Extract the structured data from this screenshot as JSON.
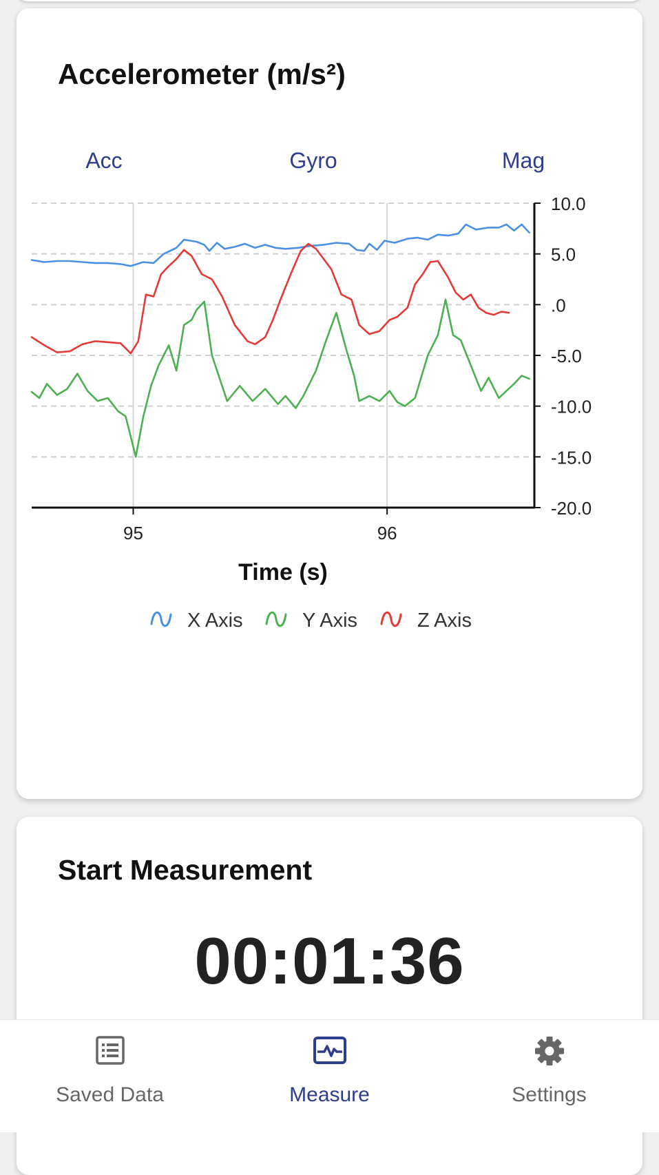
{
  "chart_card": {
    "title": "Accelerometer (m/s²)",
    "tabs": [
      "Acc",
      "Gyro",
      "Mag"
    ],
    "active_tab": "Acc"
  },
  "chart_data": {
    "type": "line",
    "xlabel": "Time (s)",
    "ylabel": "",
    "xlim": [
      94.6,
      96.58
    ],
    "ylim": [
      -20,
      10
    ],
    "x_ticks": [
      95,
      96
    ],
    "x_tick_labels": [
      "95",
      "96"
    ],
    "y_ticks": [
      10,
      5,
      0,
      -5,
      -10,
      -15,
      -20
    ],
    "y_tick_labels": [
      "10.0",
      "5.0",
      ".0",
      "-5.0",
      "-10.0",
      "-15.0",
      "-20.0"
    ],
    "grid": true,
    "legend_position": "bottom",
    "colors": {
      "x": "#4a90e2",
      "y": "#4caf50",
      "z": "#e53935"
    },
    "series": [
      {
        "name": "X Axis",
        "color": "#4a90e2",
        "points": [
          [
            94.6,
            4.4
          ],
          [
            94.65,
            4.2
          ],
          [
            94.7,
            4.3
          ],
          [
            94.75,
            4.3
          ],
          [
            94.8,
            4.2
          ],
          [
            94.85,
            4.1
          ],
          [
            94.9,
            4.1
          ],
          [
            94.95,
            4.0
          ],
          [
            94.99,
            3.8
          ],
          [
            95.04,
            4.2
          ],
          [
            95.08,
            4.1
          ],
          [
            95.12,
            5.0
          ],
          [
            95.17,
            5.6
          ],
          [
            95.2,
            6.4
          ],
          [
            95.25,
            6.2
          ],
          [
            95.28,
            5.9
          ],
          [
            95.3,
            5.3
          ],
          [
            95.33,
            6.1
          ],
          [
            95.36,
            5.5
          ],
          [
            95.4,
            5.7
          ],
          [
            95.44,
            6.0
          ],
          [
            95.48,
            5.6
          ],
          [
            95.52,
            5.9
          ],
          [
            95.56,
            5.6
          ],
          [
            95.6,
            5.5
          ],
          [
            95.65,
            5.6
          ],
          [
            95.7,
            5.8
          ],
          [
            95.75,
            5.9
          ],
          [
            95.8,
            6.1
          ],
          [
            95.85,
            6.0
          ],
          [
            95.88,
            5.4
          ],
          [
            95.91,
            5.3
          ],
          [
            95.93,
            6.0
          ],
          [
            95.96,
            5.4
          ],
          [
            95.99,
            6.3
          ],
          [
            96.03,
            6.1
          ],
          [
            96.08,
            6.5
          ],
          [
            96.12,
            6.6
          ],
          [
            96.16,
            6.4
          ],
          [
            96.2,
            6.9
          ],
          [
            96.24,
            6.8
          ],
          [
            96.28,
            7.0
          ],
          [
            96.31,
            7.9
          ],
          [
            96.35,
            7.4
          ],
          [
            96.4,
            7.6
          ],
          [
            96.44,
            7.6
          ],
          [
            96.47,
            7.9
          ],
          [
            96.5,
            7.3
          ],
          [
            96.53,
            7.9
          ],
          [
            96.56,
            7.1
          ]
        ]
      },
      {
        "name": "Y Axis",
        "color": "#4caf50",
        "points": [
          [
            94.6,
            -8.6
          ],
          [
            94.63,
            -9.2
          ],
          [
            94.66,
            -7.8
          ],
          [
            94.7,
            -8.9
          ],
          [
            94.74,
            -8.3
          ],
          [
            94.78,
            -6.8
          ],
          [
            94.82,
            -8.5
          ],
          [
            94.86,
            -9.5
          ],
          [
            94.9,
            -9.2
          ],
          [
            94.94,
            -10.5
          ],
          [
            94.97,
            -11.0
          ],
          [
            95.01,
            -15.0
          ],
          [
            95.04,
            -11.0
          ],
          [
            95.07,
            -8.0
          ],
          [
            95.1,
            -6.0
          ],
          [
            95.14,
            -4.0
          ],
          [
            95.17,
            -6.5
          ],
          [
            95.2,
            -2.0
          ],
          [
            95.23,
            -1.5
          ],
          [
            95.25,
            -0.5
          ],
          [
            95.28,
            0.3
          ],
          [
            95.31,
            -5.0
          ],
          [
            95.35,
            -8.0
          ],
          [
            95.37,
            -9.5
          ],
          [
            95.42,
            -8.0
          ],
          [
            95.47,
            -9.5
          ],
          [
            95.52,
            -8.3
          ],
          [
            95.57,
            -9.8
          ],
          [
            95.6,
            -9.0
          ],
          [
            95.64,
            -10.2
          ],
          [
            95.67,
            -9.0
          ],
          [
            95.72,
            -6.5
          ],
          [
            95.76,
            -3.5
          ],
          [
            95.8,
            -0.8
          ],
          [
            95.84,
            -4.5
          ],
          [
            95.87,
            -7.0
          ],
          [
            95.89,
            -9.5
          ],
          [
            95.93,
            -9.0
          ],
          [
            95.97,
            -9.5
          ],
          [
            96.01,
            -8.5
          ],
          [
            96.04,
            -9.6
          ],
          [
            96.07,
            -10.0
          ],
          [
            96.11,
            -9.2
          ],
          [
            96.16,
            -5.0
          ],
          [
            96.2,
            -3.0
          ],
          [
            96.23,
            0.5
          ],
          [
            96.26,
            -3.0
          ],
          [
            96.29,
            -3.5
          ],
          [
            96.33,
            -6.0
          ],
          [
            96.37,
            -8.5
          ],
          [
            96.4,
            -7.2
          ],
          [
            96.44,
            -9.2
          ],
          [
            96.47,
            -8.5
          ],
          [
            96.5,
            -7.8
          ],
          [
            96.53,
            -7.0
          ],
          [
            96.56,
            -7.3
          ]
        ]
      },
      {
        "name": "Z Axis",
        "color": "#e53935",
        "points": [
          [
            94.6,
            -3.2
          ],
          [
            94.65,
            -4.0
          ],
          [
            94.7,
            -4.7
          ],
          [
            94.75,
            -4.6
          ],
          [
            94.8,
            -3.9
          ],
          [
            94.85,
            -3.6
          ],
          [
            94.9,
            -3.7
          ],
          [
            94.95,
            -3.8
          ],
          [
            94.99,
            -4.8
          ],
          [
            95.02,
            -3.6
          ],
          [
            95.05,
            1.0
          ],
          [
            95.08,
            0.8
          ],
          [
            95.11,
            3.0
          ],
          [
            95.14,
            3.8
          ],
          [
            95.17,
            4.5
          ],
          [
            95.2,
            5.4
          ],
          [
            95.23,
            4.8
          ],
          [
            95.27,
            3.0
          ],
          [
            95.31,
            2.5
          ],
          [
            95.35,
            0.8
          ],
          [
            95.4,
            -2.0
          ],
          [
            95.45,
            -3.6
          ],
          [
            95.48,
            -3.9
          ],
          [
            95.52,
            -3.2
          ],
          [
            95.55,
            -1.5
          ],
          [
            95.58,
            0.5
          ],
          [
            95.62,
            3.0
          ],
          [
            95.66,
            5.3
          ],
          [
            95.69,
            6.0
          ],
          [
            95.72,
            5.5
          ],
          [
            95.75,
            4.5
          ],
          [
            95.78,
            3.5
          ],
          [
            95.82,
            1.0
          ],
          [
            95.86,
            0.5
          ],
          [
            95.89,
            -2.0
          ],
          [
            95.93,
            -2.9
          ],
          [
            95.97,
            -2.6
          ],
          [
            96.01,
            -1.5
          ],
          [
            96.04,
            -1.2
          ],
          [
            96.08,
            -0.3
          ],
          [
            96.11,
            2.0
          ],
          [
            96.14,
            3.0
          ],
          [
            96.17,
            4.2
          ],
          [
            96.2,
            4.3
          ],
          [
            96.24,
            2.7
          ],
          [
            96.27,
            1.2
          ],
          [
            96.3,
            0.5
          ],
          [
            96.33,
            1.0
          ],
          [
            96.36,
            -0.3
          ],
          [
            96.39,
            -0.8
          ],
          [
            96.42,
            -1.0
          ],
          [
            96.45,
            -0.7
          ],
          [
            96.48,
            -0.8
          ]
        ]
      }
    ]
  },
  "measure_card": {
    "title": "Start Measurement",
    "timer": "00:01:36"
  },
  "nav": {
    "items": [
      {
        "label": "Saved Data",
        "icon": "list-icon"
      },
      {
        "label": "Measure",
        "icon": "waveform-icon"
      },
      {
        "label": "Settings",
        "icon": "gear-icon"
      }
    ],
    "active": "Measure"
  }
}
